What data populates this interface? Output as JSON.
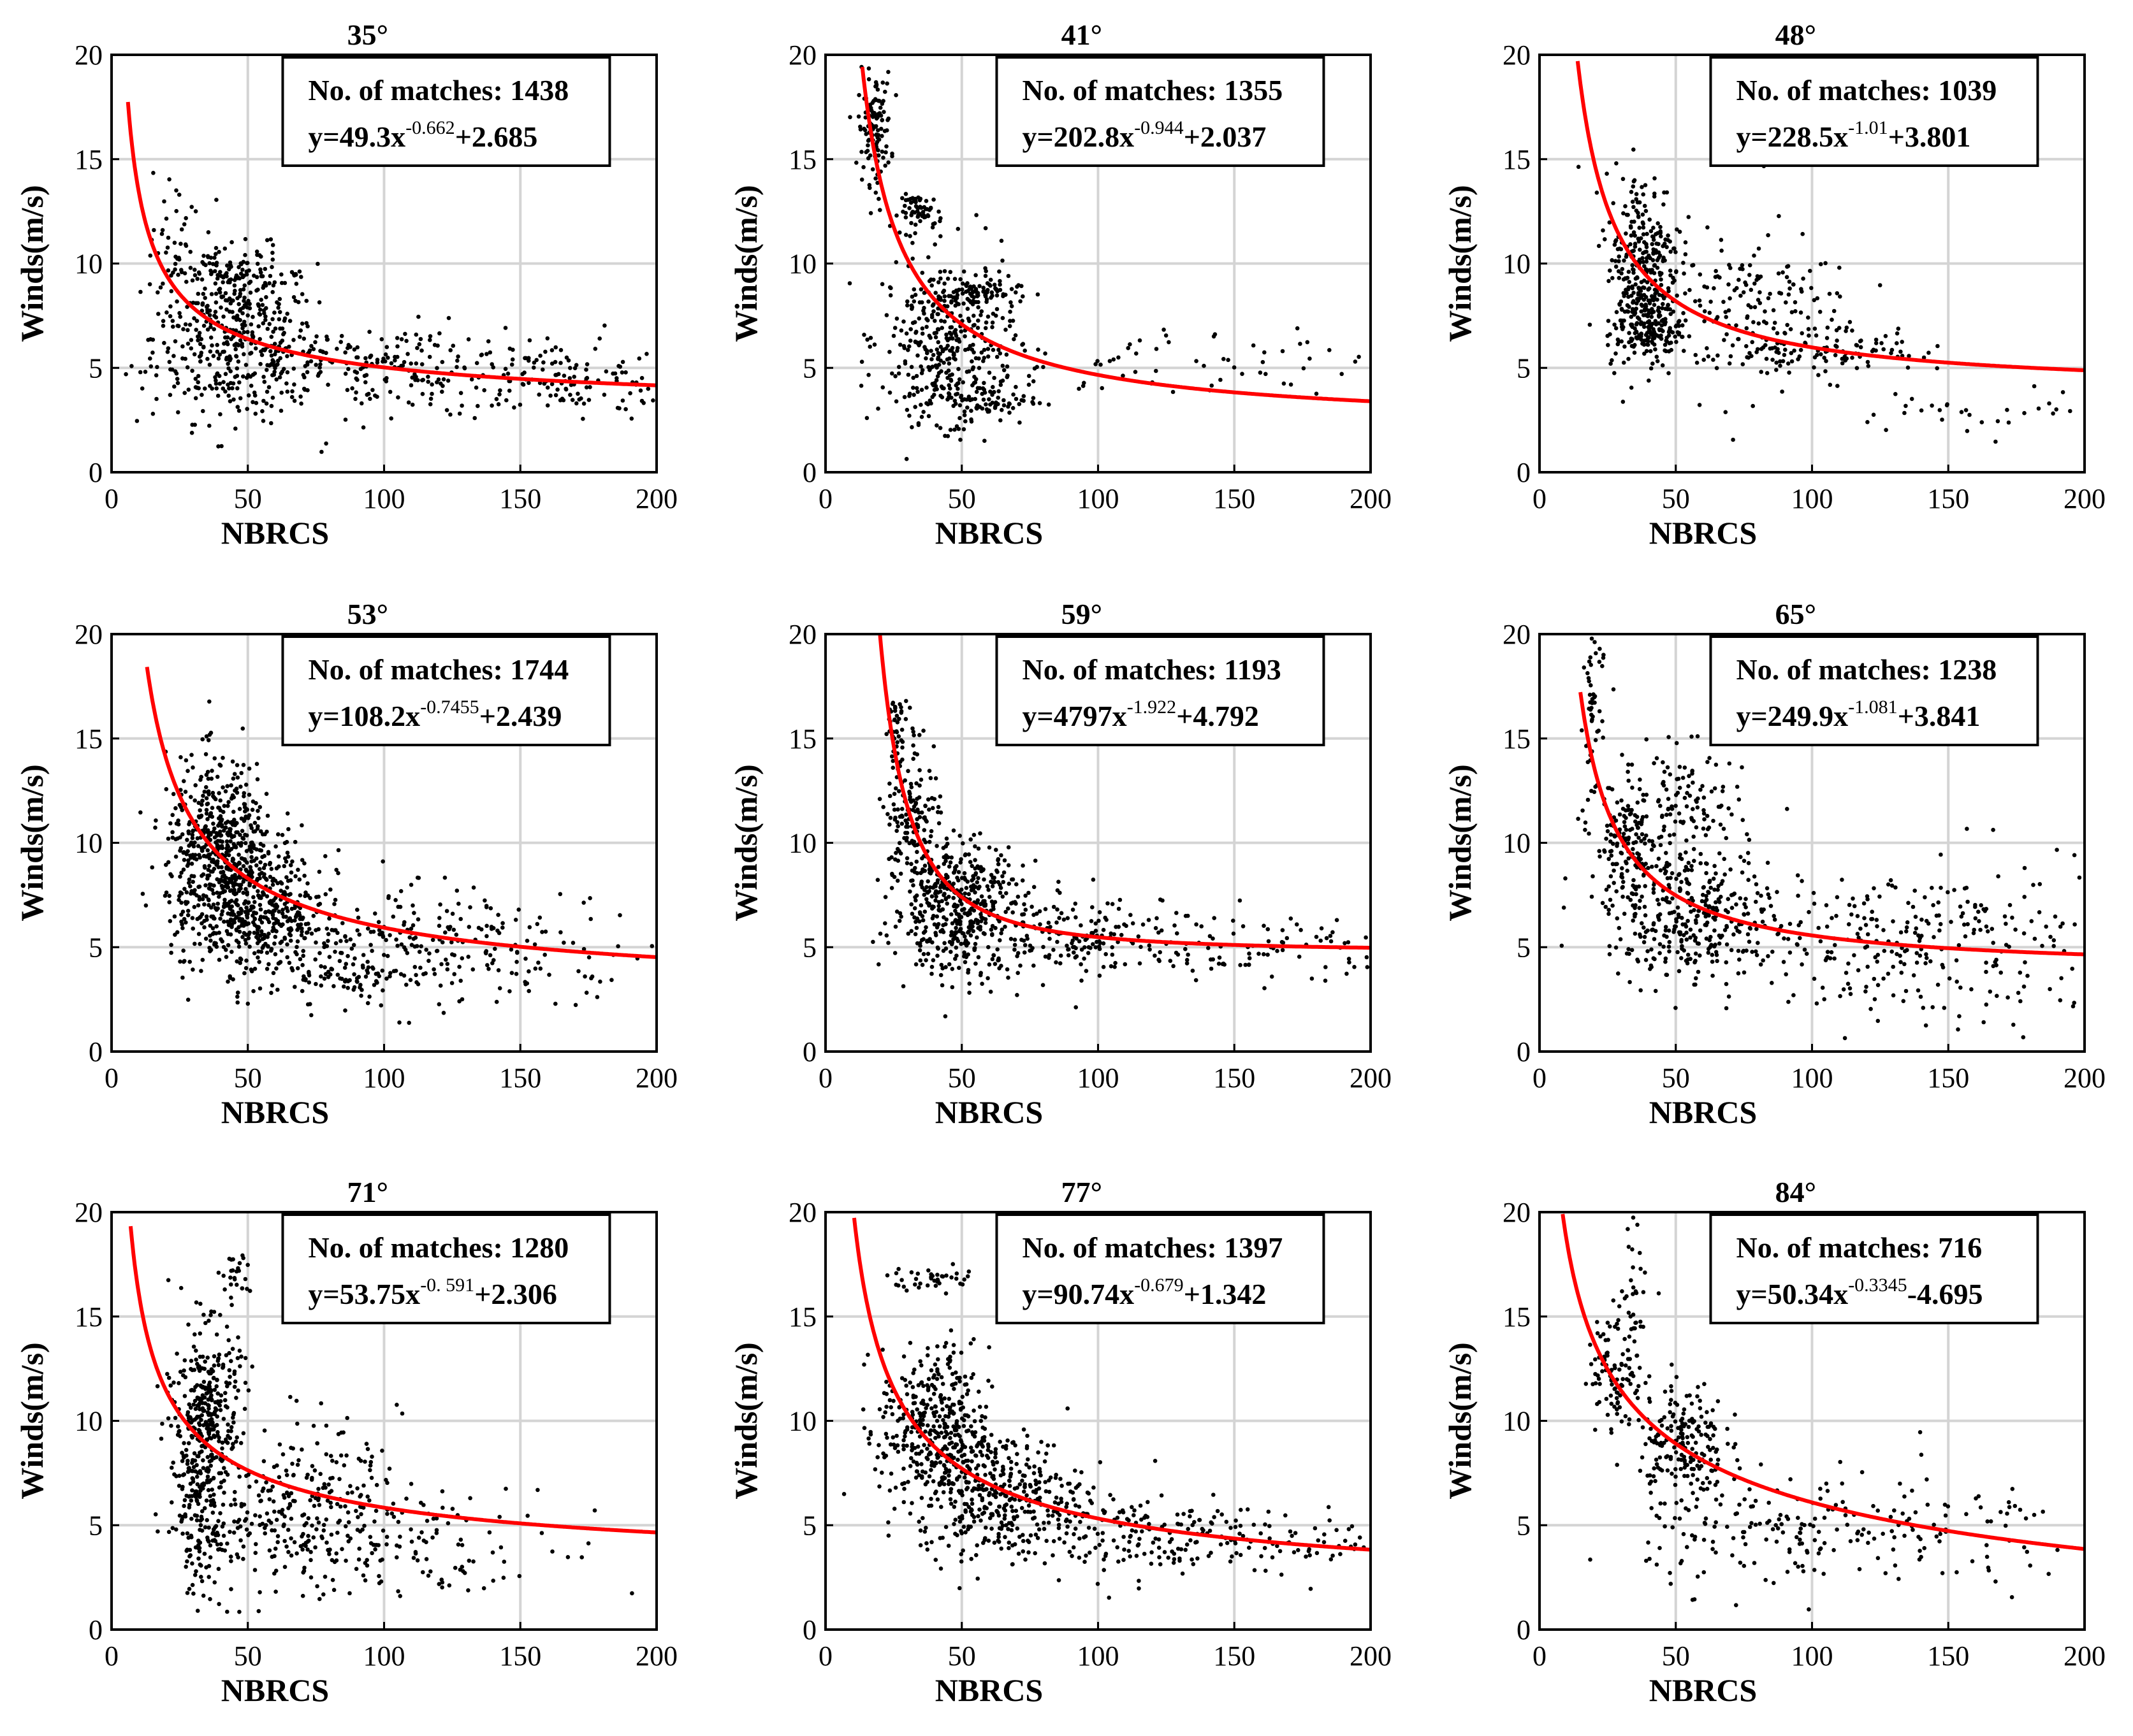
{
  "chart_data": {
    "type": "scatter",
    "layout": "3x3 grid of scatter plots with fitted power-law curves",
    "shared": {
      "xlabel": "NBRCS",
      "ylabel": "Winds(m/s)",
      "xlim": [
        0,
        200
      ],
      "ylim": [
        0,
        20
      ],
      "xticks": [
        0,
        50,
        100,
        150,
        200
      ],
      "yticks": [
        0,
        5,
        10,
        15,
        20
      ],
      "grid": true,
      "annotation_prefix": "No. of matches: ",
      "annotation_placement": "top-right",
      "point_color": "#000000",
      "fit_color": "#ff0000"
    },
    "panels": [
      {
        "title": "35°",
        "matches": "1438",
        "fit_label": {
          "pre": "y=49.3x",
          "exp": "-0.662",
          "post": "+2.685"
        },
        "fit": {
          "a": 49.3,
          "b": -0.662,
          "c": 2.685,
          "x_start": 6
        },
        "clusters": [
          {
            "cx": 45,
            "cy": 6.5,
            "sx": 15,
            "sy": 2.0,
            "n": 420
          },
          {
            "cx": 100,
            "cy": 5.0,
            "sx": 40,
            "sy": 1.0,
            "n": 250
          },
          {
            "cx": 165,
            "cy": 4.3,
            "sx": 22,
            "sy": 0.9,
            "n": 110
          },
          {
            "cx": 22,
            "cy": 10.5,
            "sx": 4,
            "sy": 2.0,
            "n": 40
          },
          {
            "cx": 45,
            "cy": 9.5,
            "sx": 10,
            "sy": 0.5,
            "n": 80
          }
        ]
      },
      {
        "title": "41°",
        "matches": "1355",
        "fit_label": {
          "pre": "y=202.8x",
          "exp": "-0.944",
          "post": "+2.037"
        },
        "fit": {
          "a": 202.8,
          "b": -0.944,
          "c": 2.037,
          "x_start": 13
        },
        "clusters": [
          {
            "cx": 18,
            "cy": 16.5,
            "sx": 3,
            "sy": 1.3,
            "n": 120
          },
          {
            "cx": 35,
            "cy": 12.5,
            "sx": 4,
            "sy": 0.4,
            "n": 60
          },
          {
            "cx": 45,
            "cy": 6.5,
            "sx": 12,
            "sy": 2.0,
            "n": 380
          },
          {
            "cx": 55,
            "cy": 8.6,
            "sx": 8,
            "sy": 0.3,
            "n": 60
          },
          {
            "cx": 120,
            "cy": 5.0,
            "sx": 40,
            "sy": 0.9,
            "n": 70
          },
          {
            "cx": 55,
            "cy": 3.5,
            "sx": 12,
            "sy": 0.6,
            "n": 100
          }
        ]
      },
      {
        "title": "48°",
        "matches": "1039",
        "fit_label": {
          "pre": "y=228.5x",
          "exp": "-1.01",
          "post": "+3.801"
        },
        "fit": {
          "a": 228.5,
          "b": -1.01,
          "c": 3.801,
          "x_start": 13
        },
        "clusters": [
          {
            "cx": 38,
            "cy": 10.0,
            "sx": 7,
            "sy": 2.2,
            "n": 300
          },
          {
            "cx": 40,
            "cy": 7.0,
            "sx": 6,
            "sy": 0.8,
            "n": 150
          },
          {
            "cx": 75,
            "cy": 7.5,
            "sx": 20,
            "sy": 2.0,
            "n": 200
          },
          {
            "cx": 110,
            "cy": 6.0,
            "sx": 15,
            "sy": 0.6,
            "n": 80
          },
          {
            "cx": 165,
            "cy": 3.0,
            "sx": 25,
            "sy": 0.5,
            "n": 30
          }
        ]
      },
      {
        "title": "53°",
        "matches": "1744",
        "fit_label": {
          "pre": "y=108.2x",
          "exp": "-0.7455",
          "post": "+2.439"
        },
        "fit": {
          "a": 108.2,
          "b": -0.7455,
          "c": 2.439,
          "x_start": 13
        },
        "clusters": [
          {
            "cx": 40,
            "cy": 9.5,
            "sx": 10,
            "sy": 2.2,
            "n": 600
          },
          {
            "cx": 55,
            "cy": 6.5,
            "sx": 12,
            "sy": 1.5,
            "n": 350
          },
          {
            "cx": 95,
            "cy": 5.0,
            "sx": 25,
            "sy": 1.5,
            "n": 200
          },
          {
            "cx": 150,
            "cy": 5.0,
            "sx": 25,
            "sy": 1.2,
            "n": 90
          },
          {
            "cx": 90,
            "cy": 3.6,
            "sx": 15,
            "sy": 0.3,
            "n": 60
          }
        ]
      },
      {
        "title": "59°",
        "matches": "1193",
        "fit_label": {
          "pre": "y=4797x",
          "exp": "-1.922",
          "post": "+4.792"
        },
        "fit": {
          "a": 4797,
          "b": -1.922,
          "c": 4.792,
          "x_start": 20
        },
        "clusters": [
          {
            "cx": 26,
            "cy": 15.5,
            "sx": 2,
            "sy": 0.7,
            "n": 40
          },
          {
            "cx": 32,
            "cy": 11.5,
            "sx": 5,
            "sy": 2.0,
            "n": 150
          },
          {
            "cx": 48,
            "cy": 7.0,
            "sx": 12,
            "sy": 1.6,
            "n": 450
          },
          {
            "cx": 90,
            "cy": 5.5,
            "sx": 25,
            "sy": 1.0,
            "n": 200
          },
          {
            "cx": 160,
            "cy": 5.0,
            "sx": 25,
            "sy": 0.8,
            "n": 90
          }
        ]
      },
      {
        "title": "65°",
        "matches": "1238",
        "fit_label": {
          "pre": "y=249.9x",
          "exp": "-1.081",
          "post": "+3.841"
        },
        "fit": {
          "a": 249.9,
          "b": -1.081,
          "c": 3.841,
          "x_start": 15
        },
        "clusters": [
          {
            "cx": 20,
            "cy": 16.5,
            "sx": 2,
            "sy": 2.5,
            "n": 60
          },
          {
            "cx": 32,
            "cy": 10.0,
            "sx": 6,
            "sy": 1.5,
            "n": 150
          },
          {
            "cx": 55,
            "cy": 11.5,
            "sx": 10,
            "sy": 1.5,
            "n": 120
          },
          {
            "cx": 55,
            "cy": 6.5,
            "sx": 15,
            "sy": 1.5,
            "n": 320
          },
          {
            "cx": 110,
            "cy": 5.5,
            "sx": 30,
            "sy": 1.7,
            "n": 200
          },
          {
            "cx": 170,
            "cy": 5.0,
            "sx": 20,
            "sy": 2.5,
            "n": 100
          }
        ]
      },
      {
        "title": "71°",
        "matches": "1280",
        "fit_label": {
          "pre": "y=53.75x",
          "exp": "-0. 591",
          "post": "+2.306"
        },
        "fit": {
          "a": 53.75,
          "b": -0.591,
          "c": 2.306,
          "x_start": 7
        },
        "clusters": [
          {
            "cx": 35,
            "cy": 11.0,
            "sx": 6,
            "sy": 1.8,
            "n": 250
          },
          {
            "cx": 33,
            "cy": 6.5,
            "sx": 6,
            "sy": 2.5,
            "n": 250
          },
          {
            "cx": 70,
            "cy": 6.0,
            "sx": 18,
            "sy": 2.0,
            "n": 300
          },
          {
            "cx": 120,
            "cy": 4.0,
            "sx": 30,
            "sy": 1.3,
            "n": 100
          },
          {
            "cx": 45,
            "cy": 17.0,
            "sx": 3,
            "sy": 0.6,
            "n": 25
          }
        ]
      },
      {
        "title": "77°",
        "matches": "1397",
        "fit_label": {
          "pre": "y=90.74x",
          "exp": "-0.679",
          "post": "+1.342"
        },
        "fit": {
          "a": 90.74,
          "b": -0.679,
          "c": 1.342,
          "x_start": 10
        },
        "clusters": [
          {
            "cx": 40,
            "cy": 16.8,
            "sx": 8,
            "sy": 0.3,
            "n": 40
          },
          {
            "cx": 40,
            "cy": 9.5,
            "sx": 10,
            "sy": 2.0,
            "n": 400
          },
          {
            "cx": 65,
            "cy": 6.5,
            "sx": 15,
            "sy": 1.5,
            "n": 350
          },
          {
            "cx": 110,
            "cy": 4.5,
            "sx": 30,
            "sy": 1.0,
            "n": 200
          },
          {
            "cx": 175,
            "cy": 4.2,
            "sx": 15,
            "sy": 0.7,
            "n": 50
          }
        ]
      },
      {
        "title": "84°",
        "matches": "716",
        "fit_label": {
          "pre": "y=50.34x",
          "exp": "-0.3345",
          "post": "-4.695"
        },
        "fit": {
          "a": 50.34,
          "b": -0.3345,
          "c": -4.695,
          "x_start": 8
        },
        "clusters": [
          {
            "cx": 28,
            "cy": 12.5,
            "sx": 5,
            "sy": 1.5,
            "n": 100
          },
          {
            "cx": 36,
            "cy": 16.5,
            "sx": 3,
            "sy": 1.5,
            "n": 30
          },
          {
            "cx": 52,
            "cy": 9.0,
            "sx": 8,
            "sy": 1.5,
            "n": 200
          },
          {
            "cx": 90,
            "cy": 4.5,
            "sx": 25,
            "sy": 1.3,
            "n": 150
          },
          {
            "cx": 150,
            "cy": 4.5,
            "sx": 25,
            "sy": 1.5,
            "n": 70
          }
        ]
      }
    ]
  }
}
